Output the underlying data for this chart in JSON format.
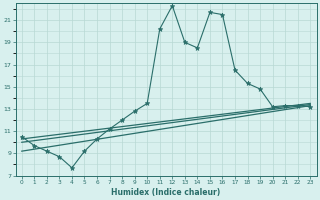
{
  "xlabel": "Humidex (Indice chaleur)",
  "bg_color": "#d8f0ee",
  "grid_color": "#b8d8d4",
  "line_color": "#2a6e6a",
  "xlim": [
    -0.5,
    23.5
  ],
  "ylim": [
    7,
    22.5
  ],
  "xticks": [
    0,
    1,
    2,
    3,
    4,
    5,
    6,
    7,
    8,
    9,
    10,
    11,
    12,
    13,
    14,
    15,
    16,
    17,
    18,
    19,
    20,
    21,
    22,
    23
  ],
  "yticks": [
    7,
    9,
    11,
    13,
    15,
    17,
    19,
    21
  ],
  "line1_x": [
    0,
    1,
    2,
    3,
    4,
    5,
    6,
    7,
    8,
    9,
    10,
    11,
    12,
    13,
    14,
    15,
    16,
    17,
    18,
    19,
    20,
    21,
    22,
    23
  ],
  "line1_y": [
    10.5,
    9.7,
    9.2,
    8.7,
    7.7,
    9.2,
    10.3,
    11.2,
    12.0,
    12.8,
    13.5,
    20.2,
    22.3,
    19.0,
    18.5,
    21.7,
    21.5,
    16.5,
    15.3,
    14.8,
    13.2,
    13.3,
    13.3,
    13.2
  ],
  "line2_x": [
    0,
    23
  ],
  "line2_y": [
    10.0,
    13.4
  ],
  "line3_x": [
    0,
    23
  ],
  "line3_y": [
    10.3,
    13.5
  ],
  "line4_x": [
    0,
    23
  ],
  "line4_y": [
    9.2,
    13.3
  ]
}
